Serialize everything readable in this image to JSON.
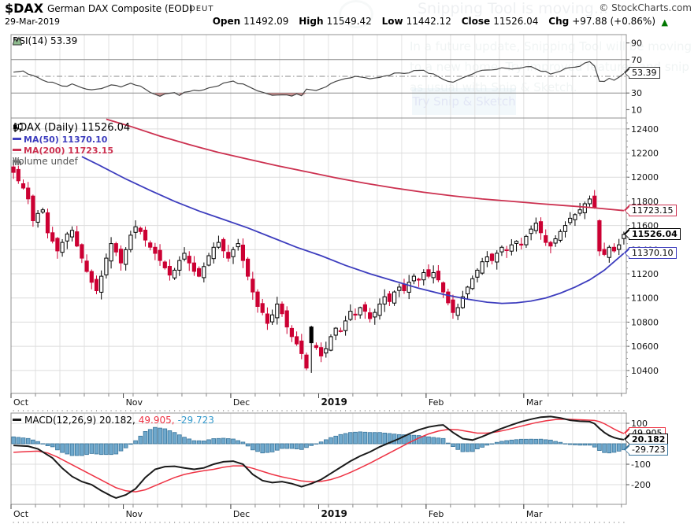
{
  "header": {
    "symbol": "$DAX",
    "name": "German DAX Composite (EOD)",
    "exchange": "DEUT",
    "date": "29-Mar-2019",
    "credit": "© StockCharts.com",
    "quote": {
      "open_label": "Open",
      "open": "11492.09",
      "high_label": "High",
      "high": "11549.42",
      "low_label": "Low",
      "low": "11442.12",
      "close_label": "Close",
      "close": "11526.04",
      "chg_label": "Chg",
      "chg": "+97.88 (+0.86%)",
      "arrow": "▲"
    }
  },
  "watermark": {
    "title": "Snipping Tool is moving...",
    "body": "In a future update, Snipping Tool will be moving to a new home. Try improved features and snip as usual with Snip & Sketch.",
    "button": "Try Snip & Sketch"
  },
  "colors": {
    "candle_down": "#cc0033",
    "candle_up_border": "#000000",
    "ma50": "#3d3dbe",
    "ma200": "#cc3150",
    "macd_line": "#1a1a1a",
    "macd_signal": "#ee3344",
    "macd_hist_fill": "#6fa8cc",
    "macd_hist_stroke": "#39759c",
    "macd_hist_text": "#3399cc",
    "rsi_line": "#444444",
    "rsi_oversold_fill": "#b05a5a",
    "up_green": "#007700",
    "grid": "#e2e2e2",
    "panel_border": "#909090",
    "level_line": "#8a8a8a",
    "axis_text": "#111111"
  },
  "months": [
    {
      "label": "Oct",
      "i": 0,
      "bold": false
    },
    {
      "label": "Nov",
      "i": 23,
      "bold": false
    },
    {
      "label": "Dec",
      "i": 45,
      "bold": false
    },
    {
      "label": "2019",
      "i": 63,
      "bold": true
    },
    {
      "label": "Feb",
      "i": 85,
      "bold": false
    },
    {
      "label": "Mar",
      "i": 105,
      "bold": false
    }
  ],
  "flags": [
    {
      "name": "rsi-value-flag",
      "panel": "rsi",
      "value": 53.39,
      "text": "53.39",
      "color": "#333333",
      "bold": false
    },
    {
      "name": "ma200-value-flag",
      "panel": "price",
      "value": 11723.15,
      "text": "11723.15",
      "color": "#cc3150",
      "bold": false
    },
    {
      "name": "ma50-value-flag",
      "panel": "price",
      "value": 11370.1,
      "text": "11370.10",
      "color": "#3d3dbe",
      "bold": false
    },
    {
      "name": "close-value-flag",
      "panel": "price",
      "value": 11526.04,
      "text": "11526.04",
      "color": "#000000",
      "bold": true
    },
    {
      "name": "signal-value-flag",
      "panel": "macd",
      "value": 49.905,
      "text": "49.905",
      "color": "#ee3344",
      "bold": false
    },
    {
      "name": "macd-value-flag",
      "panel": "macd",
      "value": 20.182,
      "text": "20.182",
      "color": "#000000",
      "bold": true
    },
    {
      "name": "hist-value-flag",
      "panel": "macd",
      "value": -29.723,
      "text": "-29.723",
      "color": "#39759c",
      "bold": false
    }
  ],
  "chart_data": [
    {
      "type": "line",
      "name": "RSI",
      "legend": "RSI(14) 53.39",
      "last_value": 53.39,
      "ylim": [
        0,
        100
      ],
      "yticks": [
        90,
        70,
        30,
        10
      ],
      "overbought": 70,
      "oversold": 30,
      "midline": 50,
      "points": [
        [
          0,
          55
        ],
        [
          2,
          57
        ],
        [
          4,
          50
        ],
        [
          6,
          46
        ],
        [
          8,
          42
        ],
        [
          10,
          38
        ],
        [
          12,
          40
        ],
        [
          14,
          36
        ],
        [
          16,
          33
        ],
        [
          18,
          35
        ],
        [
          20,
          40
        ],
        [
          22,
          37
        ],
        [
          24,
          42
        ],
        [
          26,
          38
        ],
        [
          28,
          31
        ],
        [
          30,
          27
        ],
        [
          31,
          29
        ],
        [
          33,
          31
        ],
        [
          34,
          28
        ],
        [
          35,
          30
        ],
        [
          37,
          34
        ],
        [
          39,
          33
        ],
        [
          41,
          38
        ],
        [
          43,
          41
        ],
        [
          45,
          44
        ],
        [
          47,
          40
        ],
        [
          49,
          35
        ],
        [
          51,
          30
        ],
        [
          53,
          27
        ],
        [
          55,
          28
        ],
        [
          57,
          26
        ],
        [
          58,
          29
        ],
        [
          59,
          27
        ],
        [
          60,
          34
        ],
        [
          62,
          33
        ],
        [
          64,
          38
        ],
        [
          66,
          44
        ],
        [
          68,
          48
        ],
        [
          70,
          50
        ],
        [
          72,
          49
        ],
        [
          74,
          47
        ],
        [
          76,
          51
        ],
        [
          78,
          53
        ],
        [
          80,
          54
        ],
        [
          82,
          56
        ],
        [
          84,
          57
        ],
        [
          86,
          52
        ],
        [
          88,
          46
        ],
        [
          90,
          42
        ],
        [
          92,
          48
        ],
        [
          94,
          53
        ],
        [
          96,
          57
        ],
        [
          98,
          58
        ],
        [
          100,
          60
        ],
        [
          102,
          59
        ],
        [
          104,
          61
        ],
        [
          106,
          62
        ],
        [
          108,
          57
        ],
        [
          110,
          53
        ],
        [
          112,
          57
        ],
        [
          114,
          60
        ],
        [
          116,
          63
        ],
        [
          118,
          67
        ],
        [
          119,
          62
        ],
        [
          120,
          45
        ],
        [
          121,
          43
        ],
        [
          122,
          47
        ],
        [
          123,
          45
        ],
        [
          124,
          49
        ],
        [
          125,
          53.39
        ]
      ]
    },
    {
      "type": "candlestick",
      "name": "$DAX Daily",
      "legend": {
        "title": "$DAX (Daily) 11526.04",
        "ma50": "MA(50) 11370.10",
        "ma200": "MA(200) 11723.15",
        "volume": "Volume undef"
      },
      "ylim": [
        10210,
        12490
      ],
      "yticks": [
        12400,
        12200,
        12000,
        11800,
        11600,
        11400,
        11200,
        11000,
        10800,
        10600,
        10400
      ],
      "closes": [
        12040,
        11970,
        11910,
        11820,
        11640,
        11700,
        11730,
        11540,
        11470,
        11390,
        11460,
        11530,
        11560,
        11430,
        11330,
        11220,
        11130,
        11060,
        11180,
        11330,
        11450,
        11380,
        11290,
        11400,
        11520,
        11590,
        11550,
        11480,
        11420,
        11370,
        11310,
        11250,
        11190,
        11230,
        11310,
        11370,
        11290,
        11220,
        11180,
        11260,
        11350,
        11420,
        11460,
        11390,
        11330,
        11400,
        11450,
        11310,
        11180,
        11050,
        10930,
        10880,
        10790,
        10860,
        10950,
        10870,
        10760,
        10680,
        10620,
        10540,
        10420,
        10630,
        10590,
        10520,
        10580,
        10680,
        10750,
        10730,
        10810,
        10890,
        10860,
        10920,
        10890,
        10830,
        10880,
        10950,
        11010,
        10970,
        11050,
        11090,
        11060,
        11130,
        11180,
        11150,
        11210,
        11180,
        11210,
        11150,
        11050,
        10960,
        10880,
        10920,
        11010,
        11090,
        11160,
        11230,
        11300,
        11340,
        11310,
        11370,
        11420,
        11400,
        11440,
        11470,
        11440,
        11510,
        11570,
        11620,
        11540,
        11460,
        11430,
        11490,
        11550,
        11600,
        11660,
        11690,
        11730,
        11780,
        11820,
        11750,
        11390,
        11360,
        11420,
        11390,
        11440,
        11526.04
      ],
      "overrides": {
        "opens": {
          "0": 12085,
          "61": 10760,
          "120": 11640
        },
        "lows": {
          "4": 11590,
          "61": 10380
        },
        "highs": {
          "1": 12095,
          "118": 11848
        }
      },
      "last_candle": {
        "open": 11492.09,
        "high": 11549.42,
        "low": 11442.12,
        "close": 11526.04
      },
      "ma50": [
        [
          14,
          12170
        ],
        [
          18,
          12090
        ],
        [
          23,
          11985
        ],
        [
          28,
          11890
        ],
        [
          33,
          11800
        ],
        [
          38,
          11720
        ],
        [
          43,
          11650
        ],
        [
          48,
          11580
        ],
        [
          53,
          11500
        ],
        [
          58,
          11420
        ],
        [
          63,
          11350
        ],
        [
          68,
          11270
        ],
        [
          73,
          11200
        ],
        [
          78,
          11140
        ],
        [
          83,
          11080
        ],
        [
          88,
          11030
        ],
        [
          93,
          10990
        ],
        [
          97,
          10965
        ],
        [
          100,
          10955
        ],
        [
          103,
          10960
        ],
        [
          106,
          10975
        ],
        [
          109,
          11000
        ],
        [
          112,
          11040
        ],
        [
          115,
          11090
        ],
        [
          118,
          11150
        ],
        [
          121,
          11230
        ],
        [
          123,
          11300
        ],
        [
          125,
          11370.1
        ]
      ],
      "ma200": [
        [
          19,
          12480
        ],
        [
          24,
          12420
        ],
        [
          30,
          12340
        ],
        [
          36,
          12270
        ],
        [
          42,
          12205
        ],
        [
          48,
          12150
        ],
        [
          54,
          12095
        ],
        [
          60,
          12045
        ],
        [
          66,
          11995
        ],
        [
          72,
          11950
        ],
        [
          78,
          11910
        ],
        [
          84,
          11875
        ],
        [
          90,
          11845
        ],
        [
          96,
          11820
        ],
        [
          102,
          11800
        ],
        [
          108,
          11780
        ],
        [
          113,
          11765
        ],
        [
          118,
          11750
        ],
        [
          121,
          11738
        ],
        [
          125,
          11723.15
        ]
      ]
    },
    {
      "type": "bar+line",
      "name": "MACD",
      "legend": {
        "label": "MACD(12,26,9) 20.182,",
        "signal": "49.905,",
        "hist": "-29.723"
      },
      "ylim": [
        -296,
        150
      ],
      "yticks": [
        100,
        -100,
        -200
      ],
      "macd": [
        [
          0,
          -8
        ],
        [
          3,
          -12
        ],
        [
          5,
          -25
        ],
        [
          8,
          -70
        ],
        [
          10,
          -120
        ],
        [
          12,
          -160
        ],
        [
          14,
          -185
        ],
        [
          16,
          -200
        ],
        [
          18,
          -230
        ],
        [
          20,
          -255
        ],
        [
          21,
          -265
        ],
        [
          23,
          -250
        ],
        [
          25,
          -220
        ],
        [
          27,
          -165
        ],
        [
          29,
          -125
        ],
        [
          31,
          -112
        ],
        [
          33,
          -110
        ],
        [
          35,
          -118
        ],
        [
          37,
          -125
        ],
        [
          39,
          -118
        ],
        [
          41,
          -100
        ],
        [
          43,
          -88
        ],
        [
          45,
          -85
        ],
        [
          47,
          -100
        ],
        [
          49,
          -150
        ],
        [
          51,
          -180
        ],
        [
          53,
          -190
        ],
        [
          55,
          -185
        ],
        [
          57,
          -195
        ],
        [
          59,
          -210
        ],
        [
          61,
          -195
        ],
        [
          63,
          -175
        ],
        [
          65,
          -145
        ],
        [
          67,
          -115
        ],
        [
          69,
          -85
        ],
        [
          71,
          -60
        ],
        [
          73,
          -40
        ],
        [
          75,
          -15
        ],
        [
          77,
          5
        ],
        [
          79,
          25
        ],
        [
          81,
          48
        ],
        [
          83,
          68
        ],
        [
          85,
          82
        ],
        [
          87,
          90
        ],
        [
          88,
          92
        ],
        [
          90,
          55
        ],
        [
          92,
          25
        ],
        [
          94,
          18
        ],
        [
          96,
          35
        ],
        [
          98,
          55
        ],
        [
          100,
          75
        ],
        [
          102,
          92
        ],
        [
          104,
          108
        ],
        [
          106,
          120
        ],
        [
          108,
          130
        ],
        [
          110,
          133
        ],
        [
          112,
          126
        ],
        [
          114,
          115
        ],
        [
          116,
          110
        ],
        [
          118,
          108
        ],
        [
          119,
          98
        ],
        [
          120,
          75
        ],
        [
          121,
          55
        ],
        [
          122,
          40
        ],
        [
          123,
          30
        ],
        [
          124,
          24
        ],
        [
          125,
          20.182
        ]
      ],
      "signal": [
        [
          0,
          -42
        ],
        [
          3,
          -38
        ],
        [
          5,
          -36
        ],
        [
          7,
          -45
        ],
        [
          9,
          -65
        ],
        [
          11,
          -90
        ],
        [
          13,
          -115
        ],
        [
          15,
          -140
        ],
        [
          17,
          -165
        ],
        [
          19,
          -190
        ],
        [
          21,
          -215
        ],
        [
          23,
          -230
        ],
        [
          25,
          -235
        ],
        [
          27,
          -225
        ],
        [
          29,
          -205
        ],
        [
          31,
          -185
        ],
        [
          33,
          -165
        ],
        [
          35,
          -150
        ],
        [
          37,
          -140
        ],
        [
          39,
          -132
        ],
        [
          41,
          -125
        ],
        [
          43,
          -115
        ],
        [
          45,
          -108
        ],
        [
          47,
          -108
        ],
        [
          49,
          -120
        ],
        [
          51,
          -135
        ],
        [
          53,
          -150
        ],
        [
          55,
          -162
        ],
        [
          57,
          -172
        ],
        [
          59,
          -182
        ],
        [
          61,
          -186
        ],
        [
          63,
          -184
        ],
        [
          65,
          -175
        ],
        [
          67,
          -160
        ],
        [
          69,
          -140
        ],
        [
          71,
          -118
        ],
        [
          73,
          -95
        ],
        [
          75,
          -70
        ],
        [
          77,
          -45
        ],
        [
          79,
          -20
        ],
        [
          81,
          5
        ],
        [
          83,
          28
        ],
        [
          85,
          48
        ],
        [
          87,
          62
        ],
        [
          89,
          70
        ],
        [
          91,
          68
        ],
        [
          93,
          60
        ],
        [
          95,
          52
        ],
        [
          97,
          52
        ],
        [
          99,
          58
        ],
        [
          101,
          68
        ],
        [
          103,
          80
        ],
        [
          105,
          92
        ],
        [
          107,
          103
        ],
        [
          109,
          112
        ],
        [
          111,
          118
        ],
        [
          113,
          120
        ],
        [
          115,
          118
        ],
        [
          117,
          116
        ],
        [
          119,
          114
        ],
        [
          120,
          108
        ],
        [
          121,
          98
        ],
        [
          122,
          85
        ],
        [
          123,
          72
        ],
        [
          124,
          60
        ],
        [
          125,
          49.905
        ]
      ]
    }
  ]
}
